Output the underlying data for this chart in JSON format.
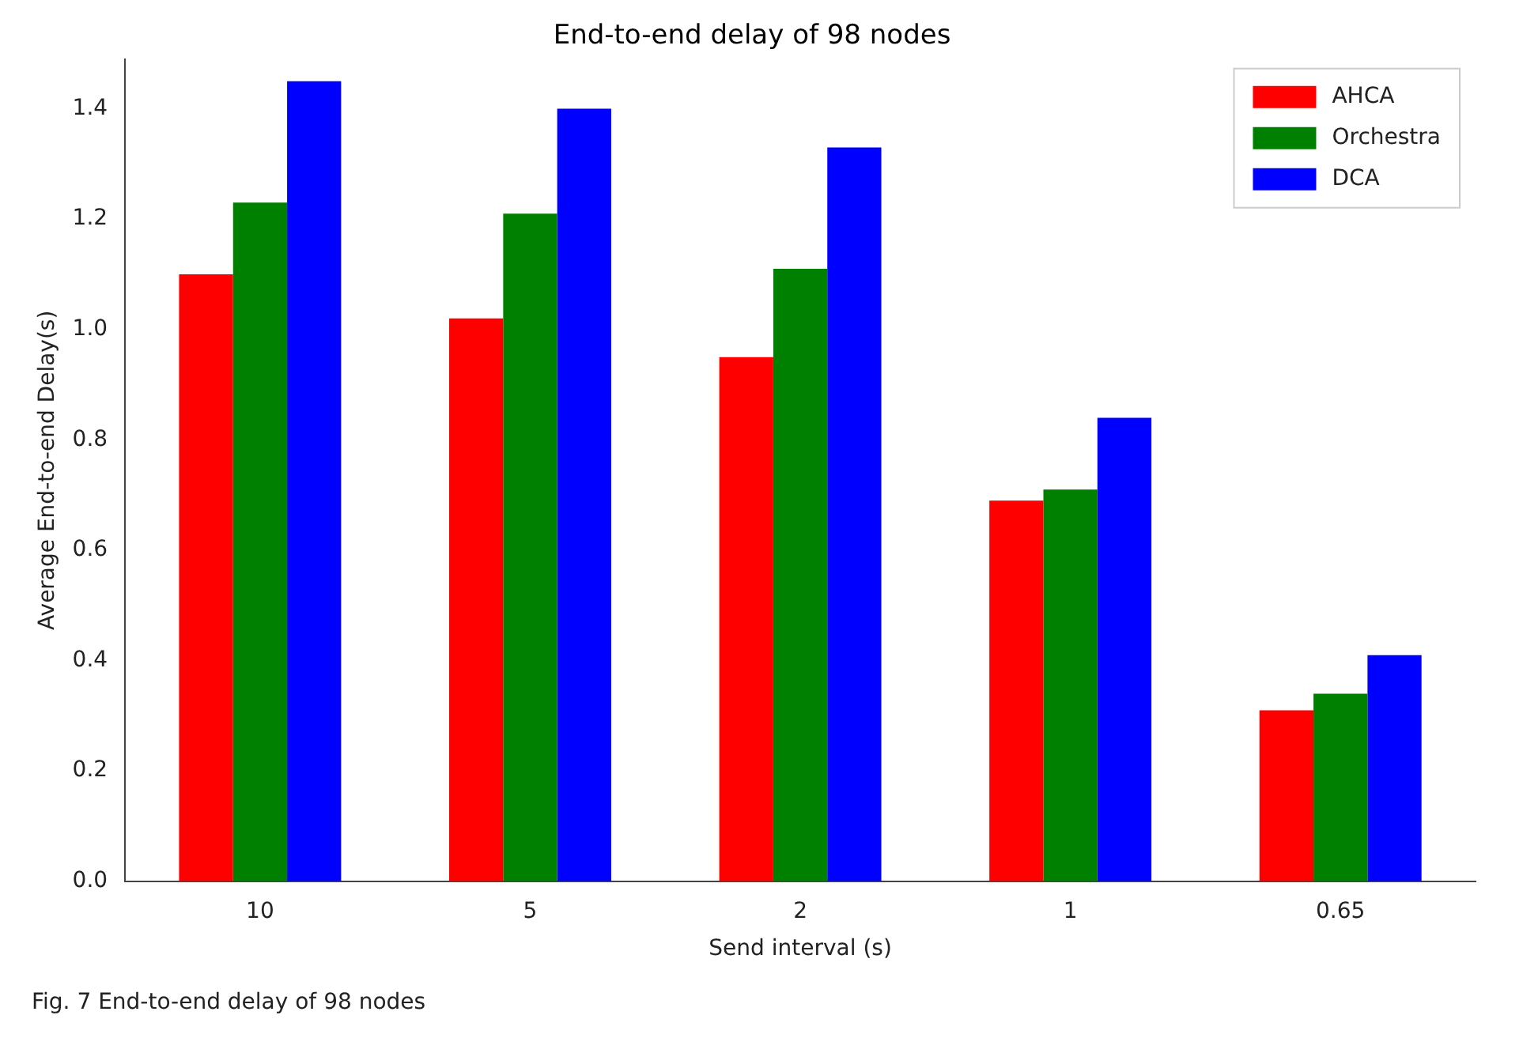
{
  "chart_data": {
    "type": "bar",
    "title": "End-to-end delay of 98 nodes",
    "xlabel": "Send interval (s)",
    "ylabel": "Average End-to-end Delay(s)",
    "categories": [
      "10",
      "5",
      "2",
      "1",
      "0.65"
    ],
    "series": [
      {
        "name": "AHCA",
        "color": "#ff0000",
        "values": [
          1.1,
          1.02,
          0.95,
          0.69,
          0.31
        ]
      },
      {
        "name": "Orchestra",
        "color": "#008000",
        "values": [
          1.23,
          1.21,
          1.11,
          0.71,
          0.34
        ]
      },
      {
        "name": "DCA",
        "color": "#0000ff",
        "values": [
          1.45,
          1.4,
          1.33,
          0.84,
          0.41
        ]
      }
    ],
    "ylim": [
      0,
      1.49
    ],
    "yticks": [
      {
        "value": 0,
        "label": "0.0"
      },
      0.2,
      0.4,
      0.6,
      0.8,
      {
        "value": 1,
        "label": "1.0"
      },
      1.2,
      1.4
    ],
    "grid": false,
    "legend": "top right",
    "annotations": [
      "Fig. 7 End-to-end delay of 98 nodes"
    ]
  }
}
